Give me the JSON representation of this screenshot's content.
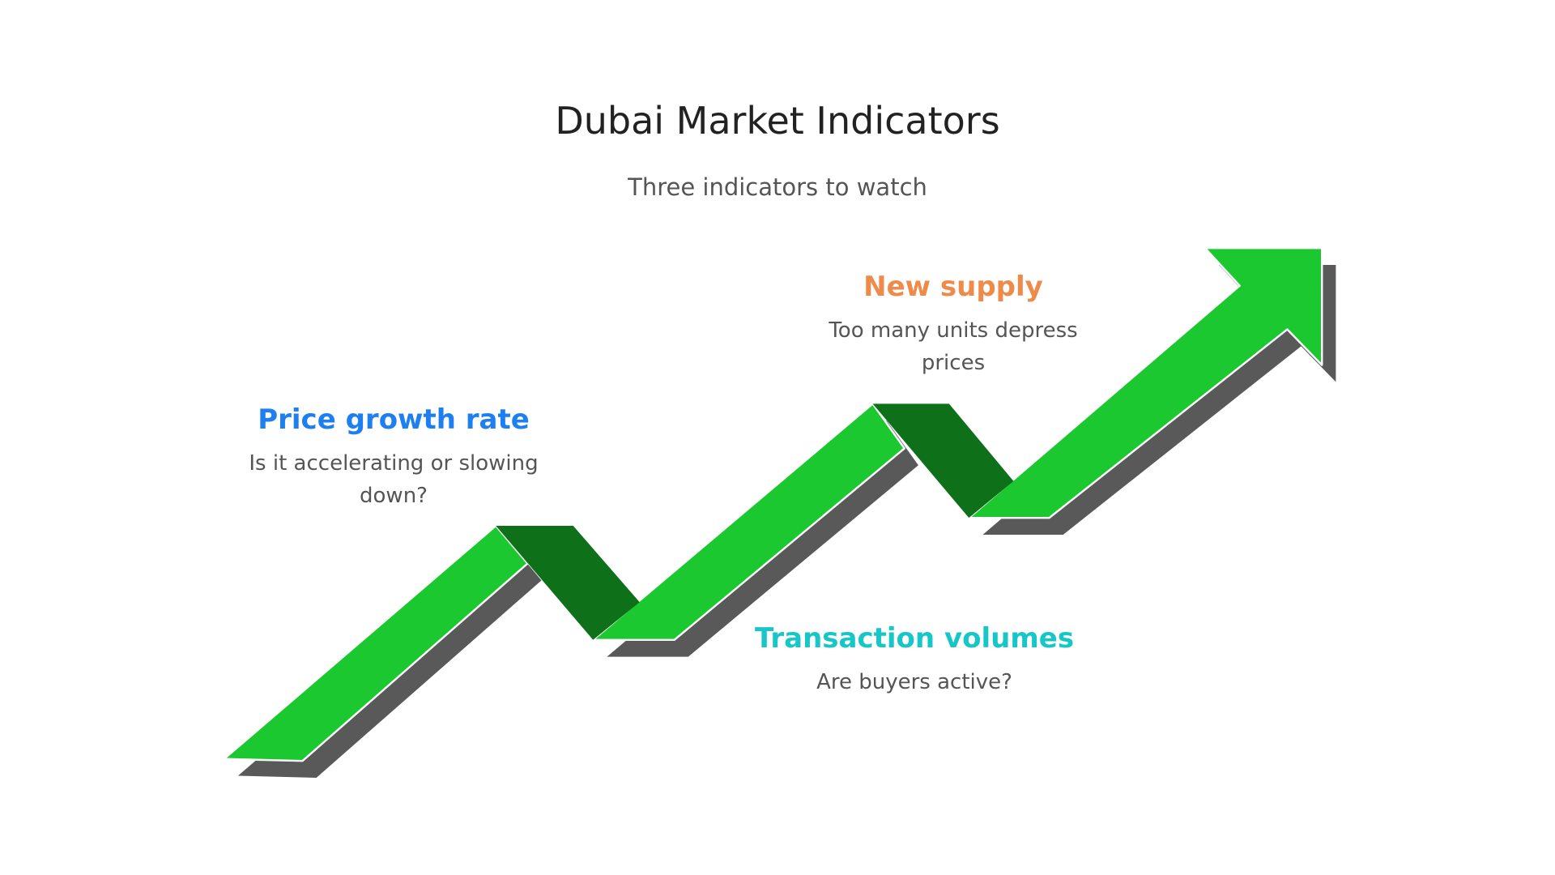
{
  "header": {
    "title": "Dubai Market Indicators",
    "subtitle": "Three indicators to watch"
  },
  "items": [
    {
      "title": "Price growth rate",
      "description": "Is it accelerating or slowing down?"
    },
    {
      "title": "New supply",
      "description": "Too many units depress prices"
    },
    {
      "title": "Transaction volumes",
      "description": "Are buyers active?"
    }
  ]
}
